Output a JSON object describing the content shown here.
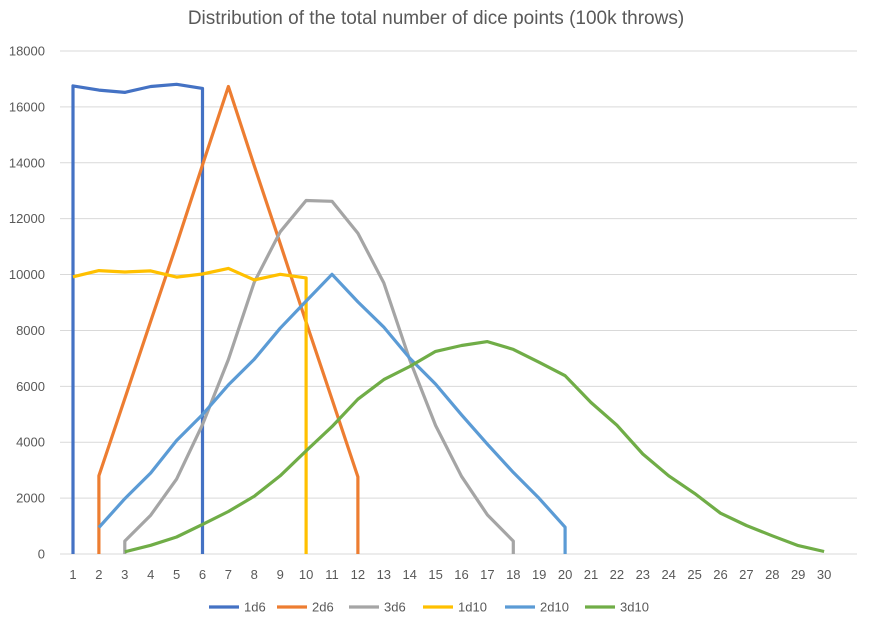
{
  "chart_data": {
    "type": "line",
    "title": "Distribution of the total number of dice points (100k throws)",
    "xlabel": "",
    "ylabel": "",
    "xlim": [
      1,
      30
    ],
    "ylim": [
      0,
      18000
    ],
    "grid": true,
    "legend_position": "bottom",
    "x_ticks": [
      1,
      2,
      3,
      4,
      5,
      6,
      7,
      8,
      9,
      10,
      11,
      12,
      13,
      14,
      15,
      16,
      17,
      18,
      19,
      20,
      21,
      22,
      23,
      24,
      25,
      26,
      27,
      28,
      29,
      30
    ],
    "y_ticks": [
      0,
      2000,
      4000,
      6000,
      8000,
      10000,
      12000,
      14000,
      16000,
      18000
    ],
    "series": [
      {
        "name": "1d6",
        "color": "#4472c4",
        "points": [
          [
            1,
            0
          ],
          [
            1,
            16750
          ],
          [
            2,
            16600
          ],
          [
            3,
            16520
          ],
          [
            4,
            16730
          ],
          [
            5,
            16810
          ],
          [
            6,
            16660
          ],
          [
            6,
            0
          ]
        ]
      },
      {
        "name": "2d6",
        "color": "#ed7d31",
        "points": [
          [
            2,
            0
          ],
          [
            2,
            2800
          ],
          [
            3,
            5560
          ],
          [
            4,
            8330
          ],
          [
            5,
            11080
          ],
          [
            6,
            13920
          ],
          [
            7,
            16730
          ],
          [
            8,
            13890
          ],
          [
            9,
            11110
          ],
          [
            10,
            8300
          ],
          [
            11,
            5540
          ],
          [
            12,
            2760
          ],
          [
            12,
            0
          ]
        ]
      },
      {
        "name": "3d6",
        "color": "#a5a5a5",
        "points": [
          [
            3,
            0
          ],
          [
            3,
            460
          ],
          [
            4,
            1390
          ],
          [
            5,
            2680
          ],
          [
            6,
            4630
          ],
          [
            7,
            6960
          ],
          [
            8,
            9730
          ],
          [
            9,
            11530
          ],
          [
            10,
            12650
          ],
          [
            11,
            12620
          ],
          [
            12,
            11480
          ],
          [
            13,
            9700
          ],
          [
            14,
            6950
          ],
          [
            15,
            4600
          ],
          [
            16,
            2780
          ],
          [
            17,
            1400
          ],
          [
            18,
            460
          ],
          [
            18,
            0
          ]
        ]
      },
      {
        "name": "1d10",
        "color": "#ffc000",
        "points": [
          [
            1,
            9920
          ],
          [
            2,
            10140
          ],
          [
            3,
            10090
          ],
          [
            4,
            10130
          ],
          [
            5,
            9910
          ],
          [
            6,
            10020
          ],
          [
            7,
            10220
          ],
          [
            8,
            9810
          ],
          [
            9,
            10010
          ],
          [
            10,
            9880
          ],
          [
            10,
            0
          ]
        ]
      },
      {
        "name": "2d10",
        "color": "#5b9bd5",
        "points": [
          [
            2,
            950
          ],
          [
            3,
            1980
          ],
          [
            4,
            2900
          ],
          [
            5,
            4060
          ],
          [
            6,
            4990
          ],
          [
            7,
            6050
          ],
          [
            8,
            6970
          ],
          [
            9,
            8080
          ],
          [
            10,
            9050
          ],
          [
            11,
            10010
          ],
          [
            12,
            9020
          ],
          [
            13,
            8120
          ],
          [
            14,
            7010
          ],
          [
            15,
            6080
          ],
          [
            16,
            4980
          ],
          [
            17,
            3930
          ],
          [
            18,
            2920
          ],
          [
            19,
            1990
          ],
          [
            20,
            960
          ],
          [
            20,
            0
          ]
        ]
      },
      {
        "name": "3d10",
        "color": "#70ad47",
        "points": [
          [
            3,
            80
          ],
          [
            4,
            310
          ],
          [
            5,
            610
          ],
          [
            6,
            1060
          ],
          [
            7,
            1520
          ],
          [
            8,
            2070
          ],
          [
            9,
            2800
          ],
          [
            10,
            3690
          ],
          [
            11,
            4560
          ],
          [
            12,
            5540
          ],
          [
            13,
            6240
          ],
          [
            14,
            6710
          ],
          [
            15,
            7250
          ],
          [
            16,
            7460
          ],
          [
            17,
            7600
          ],
          [
            18,
            7320
          ],
          [
            19,
            6860
          ],
          [
            20,
            6380
          ],
          [
            21,
            5420
          ],
          [
            22,
            4610
          ],
          [
            23,
            3580
          ],
          [
            24,
            2800
          ],
          [
            25,
            2170
          ],
          [
            26,
            1460
          ],
          [
            27,
            1020
          ],
          [
            28,
            650
          ],
          [
            29,
            300
          ],
          [
            30,
            90
          ]
        ]
      }
    ]
  }
}
